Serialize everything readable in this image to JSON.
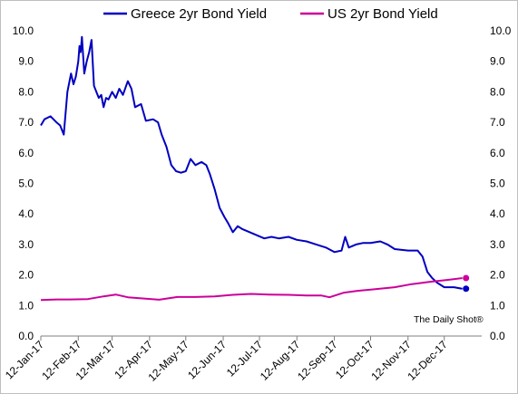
{
  "chart_data": {
    "type": "line",
    "title": "",
    "xlabel": "",
    "ylabel": "",
    "ylim": [
      0,
      10
    ],
    "yticks": [
      "0.0",
      "1.0",
      "2.0",
      "3.0",
      "4.0",
      "5.0",
      "6.0",
      "7.0",
      "8.0",
      "9.0",
      "10.0"
    ],
    "x_range": [
      "2017-01-12",
      "2018-01-12"
    ],
    "x_tick_dates": [
      "2017-01-12",
      "2017-02-12",
      "2017-03-12",
      "2017-04-12",
      "2017-05-12",
      "2017-06-12",
      "2017-07-12",
      "2017-08-12",
      "2017-09-12",
      "2017-10-12",
      "2017-11-12",
      "2017-12-12"
    ],
    "x_tick_labels": [
      "12-Jan-17",
      "12-Feb-17",
      "12-Mar-17",
      "12-Apr-17",
      "12-May-17",
      "12-Jun-17",
      "12-Jul-17",
      "12-Aug-17",
      "12-Sep-17",
      "12-Oct-17",
      "12-Nov-17",
      "12-Dec-17"
    ],
    "grid": false,
    "legend": "top",
    "series": [
      {
        "name": "Greece 2yr Bond Yield",
        "color": "#0000c0",
        "points": [
          [
            "2017-01-12",
            6.9
          ],
          [
            "2017-01-15",
            7.1
          ],
          [
            "2017-01-20",
            7.2
          ],
          [
            "2017-01-25",
            7.0
          ],
          [
            "2017-01-28",
            6.9
          ],
          [
            "2017-01-31",
            6.6
          ],
          [
            "2017-02-03",
            8.0
          ],
          [
            "2017-02-06",
            8.6
          ],
          [
            "2017-02-08",
            8.25
          ],
          [
            "2017-02-10",
            8.5
          ],
          [
            "2017-02-12",
            9.0
          ],
          [
            "2017-02-13",
            9.5
          ],
          [
            "2017-02-14",
            9.3
          ],
          [
            "2017-02-15",
            9.8
          ],
          [
            "2017-02-17",
            8.6
          ],
          [
            "2017-02-19",
            9.0
          ],
          [
            "2017-02-21",
            9.3
          ],
          [
            "2017-02-23",
            9.7
          ],
          [
            "2017-02-25",
            8.2
          ],
          [
            "2017-02-27",
            8.0
          ],
          [
            "2017-03-01",
            7.8
          ],
          [
            "2017-03-03",
            7.9
          ],
          [
            "2017-03-05",
            7.5
          ],
          [
            "2017-03-07",
            7.8
          ],
          [
            "2017-03-09",
            7.75
          ],
          [
            "2017-03-12",
            8.0
          ],
          [
            "2017-03-15",
            7.8
          ],
          [
            "2017-03-18",
            8.1
          ],
          [
            "2017-03-21",
            7.9
          ],
          [
            "2017-03-25",
            8.35
          ],
          [
            "2017-03-28",
            8.1
          ],
          [
            "2017-03-31",
            7.5
          ],
          [
            "2017-04-05",
            7.6
          ],
          [
            "2017-04-09",
            7.05
          ],
          [
            "2017-04-15",
            7.1
          ],
          [
            "2017-04-19",
            7.0
          ],
          [
            "2017-04-22",
            6.6
          ],
          [
            "2017-04-26",
            6.2
          ],
          [
            "2017-04-30",
            5.6
          ],
          [
            "2017-05-04",
            5.4
          ],
          [
            "2017-05-08",
            5.35
          ],
          [
            "2017-05-12",
            5.4
          ],
          [
            "2017-05-16",
            5.8
          ],
          [
            "2017-05-20",
            5.6
          ],
          [
            "2017-05-25",
            5.7
          ],
          [
            "2017-05-29",
            5.6
          ],
          [
            "2017-06-01",
            5.3
          ],
          [
            "2017-06-05",
            4.8
          ],
          [
            "2017-06-09",
            4.2
          ],
          [
            "2017-06-13",
            3.9
          ],
          [
            "2017-06-16",
            3.7
          ],
          [
            "2017-06-20",
            3.4
          ],
          [
            "2017-06-24",
            3.6
          ],
          [
            "2017-06-28",
            3.5
          ],
          [
            "2017-07-04",
            3.4
          ],
          [
            "2017-07-10",
            3.3
          ],
          [
            "2017-07-16",
            3.2
          ],
          [
            "2017-07-22",
            3.25
          ],
          [
            "2017-07-28",
            3.2
          ],
          [
            "2017-08-05",
            3.25
          ],
          [
            "2017-08-12",
            3.15
          ],
          [
            "2017-08-20",
            3.1
          ],
          [
            "2017-08-28",
            3.0
          ],
          [
            "2017-09-05",
            2.9
          ],
          [
            "2017-09-12",
            2.75
          ],
          [
            "2017-09-18",
            2.8
          ],
          [
            "2017-09-21",
            3.25
          ],
          [
            "2017-09-24",
            2.9
          ],
          [
            "2017-09-30",
            3.0
          ],
          [
            "2017-10-06",
            3.05
          ],
          [
            "2017-10-12",
            3.05
          ],
          [
            "2017-10-20",
            3.1
          ],
          [
            "2017-10-26",
            3.0
          ],
          [
            "2017-11-01",
            2.85
          ],
          [
            "2017-11-12",
            2.8
          ],
          [
            "2017-11-20",
            2.8
          ],
          [
            "2017-11-24",
            2.6
          ],
          [
            "2017-11-28",
            2.1
          ],
          [
            "2017-12-02",
            1.9
          ],
          [
            "2017-12-06",
            1.75
          ],
          [
            "2017-12-12",
            1.6
          ],
          [
            "2017-12-20",
            1.6
          ],
          [
            "2017-12-27",
            1.55
          ]
        ],
        "end_marker": true
      },
      {
        "name": "US 2yr Bond Yield",
        "color": "#cc0099",
        "points": [
          [
            "2017-01-12",
            1.18
          ],
          [
            "2017-01-25",
            1.2
          ],
          [
            "2017-02-05",
            1.2
          ],
          [
            "2017-02-20",
            1.21
          ],
          [
            "2017-03-05",
            1.3
          ],
          [
            "2017-03-15",
            1.36
          ],
          [
            "2017-03-25",
            1.27
          ],
          [
            "2017-04-10",
            1.22
          ],
          [
            "2017-04-20",
            1.19
          ],
          [
            "2017-05-05",
            1.28
          ],
          [
            "2017-05-20",
            1.28
          ],
          [
            "2017-06-05",
            1.3
          ],
          [
            "2017-06-20",
            1.35
          ],
          [
            "2017-07-05",
            1.38
          ],
          [
            "2017-07-20",
            1.36
          ],
          [
            "2017-08-05",
            1.35
          ],
          [
            "2017-08-20",
            1.33
          ],
          [
            "2017-09-01",
            1.33
          ],
          [
            "2017-09-08",
            1.27
          ],
          [
            "2017-09-20",
            1.42
          ],
          [
            "2017-10-01",
            1.48
          ],
          [
            "2017-10-15",
            1.53
          ],
          [
            "2017-11-01",
            1.6
          ],
          [
            "2017-11-15",
            1.7
          ],
          [
            "2017-12-01",
            1.78
          ],
          [
            "2017-12-15",
            1.84
          ],
          [
            "2017-12-27",
            1.9
          ]
        ],
        "end_marker": true
      }
    ],
    "annotations": [
      "The Daily Shot®"
    ]
  }
}
